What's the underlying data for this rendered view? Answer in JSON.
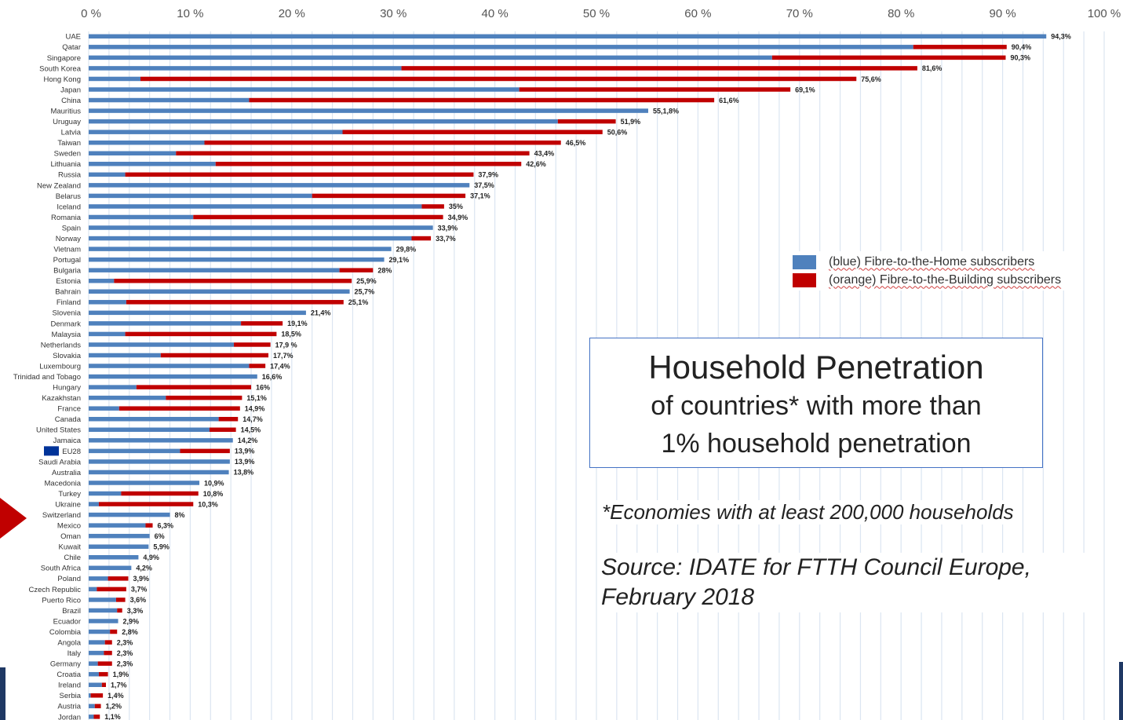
{
  "chart_data": {
    "type": "bar",
    "orientation": "horizontal",
    "stacked": true,
    "xlim": [
      0,
      100
    ],
    "x_ticks": [
      "0 %",
      "10 %",
      "20 %",
      "30 %",
      "40 %",
      "50 %",
      "60 %",
      "70 %",
      "80 %",
      "90 %",
      "100 %"
    ],
    "grid": true,
    "legend_placement": "right",
    "title": "Household Penetration",
    "subtitle_lines": [
      "of countries* with more than",
      "1% household penetration"
    ],
    "note": "*Economies with at least 200,000 households",
    "source_lines": [
      "Source: IDATE for FTTH Council Europe,",
      "February 2018"
    ],
    "highlighted_category": "Switzerland",
    "categories": [
      "UAE",
      "Qatar",
      "Singapore",
      "South Korea",
      "Hong Kong",
      "Japan",
      "China",
      "Mauritius",
      "Uruguay",
      "Latvia",
      "Taiwan",
      "Sweden",
      "Lithuania",
      "Russia",
      "New Zealand",
      "Belarus",
      "Iceland",
      "Romania",
      "Spain",
      "Norway",
      "Vietnam",
      "Portugal",
      "Bulgaria",
      "Estonia",
      "Bahrain",
      "Finland",
      "Slovenia",
      "Denmark",
      "Malaysia",
      "Netherlands",
      "Slovakia",
      "Luxembourg",
      "Trinidad and Tobago",
      "Hungary",
      "Kazakhstan",
      "France",
      "Canada",
      "United States",
      "Jamaica",
      "EU28",
      "Saudi Arabia",
      "Australia",
      "Macedonia",
      "Turkey",
      "Ukraine",
      "Switzerland",
      "Mexico",
      "Oman",
      "Kuwait",
      "Chile",
      "South Africa",
      "Poland",
      "Czech Republic",
      "Puerto Rico",
      "Brazil",
      "Ecuador",
      "Colombia",
      "Angola",
      "Italy",
      "Germany",
      "Croatia",
      "Ireland",
      "Serbia",
      "Austria",
      "Jordan"
    ],
    "data_labels": [
      "94,3%",
      "90,4%",
      "90,3%",
      "81,6%",
      "75,6%",
      "69,1%",
      "61,6%",
      "55,1,8%",
      "51,9%",
      "50,6%",
      "46,5%",
      "43,4%",
      "42,6%",
      "37,9%",
      "37,5%",
      "37,1%",
      "35%",
      "34,9%",
      "33,9%",
      "33,7%",
      "29,8%",
      "29,1%",
      "28%",
      "25,9%",
      "25,7%",
      "25,1%",
      "21,4%",
      "19,1%",
      "18,5%",
      "17,9 %",
      "17,7%",
      "17,4%",
      "16,6%",
      "16%",
      "15,1%",
      "14,9%",
      "14,7%",
      "14,5%",
      "14,2%",
      "13,9%",
      "13,9%",
      "13,8%",
      "10,9%",
      "10,8%",
      "10,3%",
      "8%",
      "6,3%",
      "6%",
      "5,9%",
      "4,9%",
      "4,2%",
      "3,9%",
      "3,7%",
      "3,6%",
      "3,3%",
      "2,9%",
      "2,8%",
      "2,3%",
      "2,3%",
      "2,3%",
      "1,9%",
      "1,7%",
      "1,4%",
      "1,2%",
      "1,1%"
    ],
    "series": [
      {
        "name": "(blue) Fibre-to-the-Home subscribers",
        "color": "#4f81bd",
        "values": [
          94.3,
          81.2,
          67.3,
          30.8,
          5.1,
          42.4,
          15.8,
          55.1,
          46.2,
          25.0,
          11.4,
          8.6,
          12.5,
          3.6,
          37.5,
          22.0,
          32.8,
          10.3,
          33.9,
          31.8,
          29.8,
          29.1,
          24.7,
          2.5,
          25.7,
          3.7,
          21.4,
          15.0,
          3.6,
          14.3,
          7.1,
          15.8,
          16.6,
          4.7,
          7.6,
          3.0,
          12.8,
          11.9,
          14.2,
          9.0,
          13.9,
          13.8,
          10.9,
          3.2,
          1.0,
          8.0,
          5.6,
          6.0,
          5.9,
          4.9,
          4.2,
          1.9,
          0.8,
          2.7,
          2.8,
          2.9,
          2.1,
          1.6,
          1.5,
          0.9,
          1.0,
          1.3,
          0.2,
          0.6,
          0.5
        ]
      },
      {
        "name": "(orange) Fibre-to-the-Building subscribers",
        "color": "#c00000",
        "values": [
          0,
          9.2,
          23.0,
          50.8,
          70.5,
          26.7,
          45.8,
          0,
          5.7,
          25.6,
          35.1,
          34.8,
          30.1,
          34.3,
          0,
          15.1,
          2.2,
          24.6,
          0,
          1.9,
          0,
          0,
          3.3,
          23.4,
          0,
          21.4,
          0,
          4.1,
          14.9,
          3.6,
          10.6,
          1.6,
          0,
          11.3,
          7.5,
          11.9,
          1.9,
          2.6,
          0,
          4.9,
          0,
          0,
          0,
          7.6,
          9.3,
          0,
          0.7,
          0,
          0,
          0,
          0,
          2.0,
          2.9,
          0.9,
          0.5,
          0,
          0.7,
          0.7,
          0.8,
          1.4,
          0.9,
          0.4,
          1.2,
          0.6,
          0.6
        ]
      }
    ]
  },
  "legend": [
    {
      "label": "(blue) Fibre-to-the-Home subscribers",
      "color": "#4f81bd"
    },
    {
      "label": "(orange) Fibre-to-the-Building subscribers",
      "color": "#c00000"
    }
  ],
  "eu_flag_color": "#003399"
}
